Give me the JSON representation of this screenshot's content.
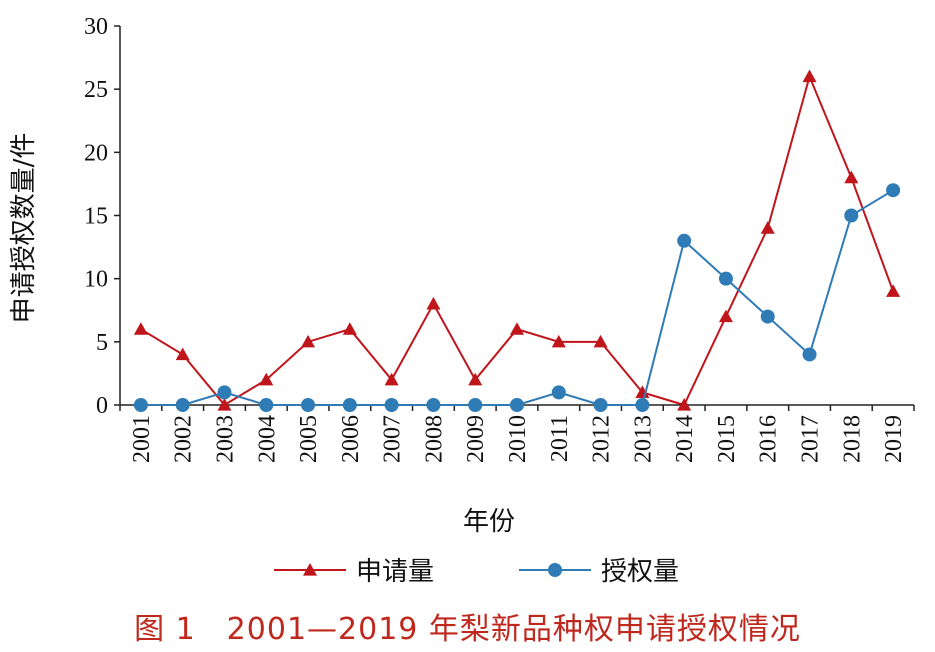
{
  "figure_caption": "图 1　2001—2019 年梨新品种权申请授权情况",
  "chart_data": {
    "type": "line",
    "categories": [
      "2001",
      "2002",
      "2003",
      "2004",
      "2005",
      "2006",
      "2007",
      "2008",
      "2009",
      "2010",
      "2011",
      "2012",
      "2013",
      "2014",
      "2015",
      "2016",
      "2017",
      "2018",
      "2019"
    ],
    "series": [
      {
        "name": "申请量",
        "color": "#c0151a",
        "marker": "triangle",
        "values": [
          6,
          4,
          0,
          2,
          5,
          6,
          2,
          8,
          2,
          6,
          5,
          5,
          1,
          0,
          7,
          14,
          26,
          18,
          9
        ]
      },
      {
        "name": "授权量",
        "color": "#2e7bb6",
        "marker": "circle",
        "values": [
          0,
          0,
          1,
          0,
          0,
          0,
          0,
          0,
          0,
          0,
          1,
          0,
          0,
          13,
          10,
          7,
          4,
          15,
          17
        ]
      }
    ],
    "xlabel": "年份",
    "ylabel": "申请授权数量/件",
    "ylim": [
      0,
      30
    ],
    "yticks": [
      "0",
      "5",
      "10",
      "15",
      "20",
      "25",
      "30"
    ],
    "grid": false,
    "legend_position": "bottom"
  }
}
